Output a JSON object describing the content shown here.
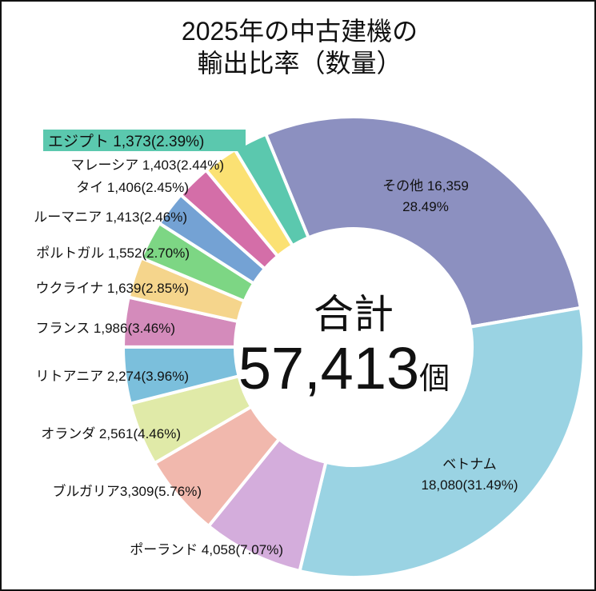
{
  "chart_data": {
    "type": "pie",
    "donut": true,
    "title_lines": [
      "2025年の中古建機の",
      "輸出比率（数量）"
    ],
    "center_label": {
      "line1": "合計",
      "value": "57,413",
      "unit": "個"
    },
    "total": 57413,
    "slices": [
      {
        "name": "その他",
        "value": 16359,
        "percent": 28.49,
        "value_label": "16,359",
        "pct_label": "28.49%",
        "color": "#8C90C0"
      },
      {
        "name": "ベトナム",
        "value": 18080,
        "percent": 31.49,
        "value_label": "18,080",
        "pct_label": "(31.49%)",
        "color": "#9AD3E3"
      },
      {
        "name": "ポーランド",
        "value": 4058,
        "percent": 7.07,
        "value_label": "4,058",
        "pct_label": "(7.07%)",
        "color": "#D4ADDC"
      },
      {
        "name": "ブルガリア",
        "value": 3309,
        "percent": 5.76,
        "value_label": "3,309",
        "pct_label": "(5.76%)",
        "color": "#F1B8AD"
      },
      {
        "name": "オランダ",
        "value": 2561,
        "percent": 4.46,
        "value_label": "2,561",
        "pct_label": "(4.46%)",
        "color": "#E0EAA8"
      },
      {
        "name": "リトアニア",
        "value": 2274,
        "percent": 3.96,
        "value_label": "2,274",
        "pct_label": "(3.96%)",
        "color": "#7BBFDC"
      },
      {
        "name": "フランス",
        "value": 1986,
        "percent": 3.46,
        "value_label": "1,986",
        "pct_label": "(3.46%)",
        "color": "#D48BBB"
      },
      {
        "name": "ウクライナ",
        "value": 1639,
        "percent": 2.85,
        "value_label": "1,639",
        "pct_label": "(2.85%)",
        "color": "#F5D58C"
      },
      {
        "name": "ポルトガル",
        "value": 1552,
        "percent": 2.7,
        "value_label": "1,552",
        "pct_label": "(2.70%)",
        "color": "#7DD684"
      },
      {
        "name": "ルーマニア",
        "value": 1413,
        "percent": 2.46,
        "value_label": "1,413",
        "pct_label": "(2.46%)",
        "color": "#74A2D4"
      },
      {
        "name": "タイ",
        "value": 1406,
        "percent": 2.45,
        "value_label": "1,406",
        "pct_label": "(2.45%)",
        "color": "#D46EA8"
      },
      {
        "name": "マレーシア",
        "value": 1403,
        "percent": 2.44,
        "value_label": "1,403",
        "pct_label": "(2.44%)",
        "color": "#FBE173"
      },
      {
        "name": "エジプト",
        "value": 1373,
        "percent": 2.39,
        "value_label": "1,373",
        "pct_label": "(2.39%)",
        "color": "#5BC8AE",
        "highlighted": true
      }
    ]
  }
}
